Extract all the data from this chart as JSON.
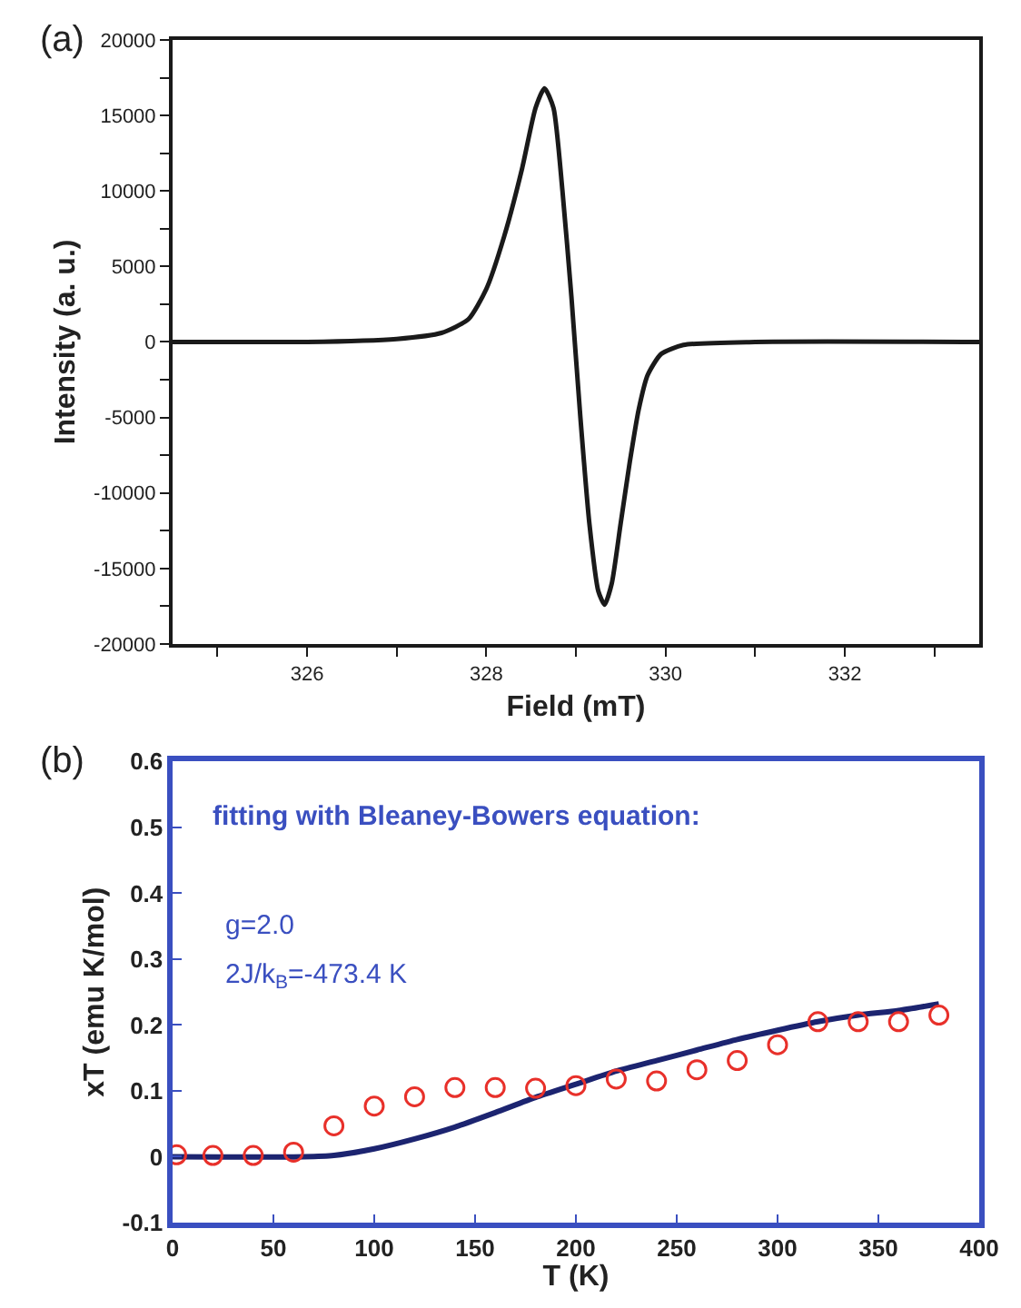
{
  "chart_data": [
    {
      "type": "line",
      "title": "(a)",
      "xlabel": "Field (mT)",
      "ylabel": "Intensity (a. u.)",
      "xlim": [
        324.5,
        333.5
      ],
      "ylim": [
        -20000,
        20000
      ],
      "xticks": [
        {
          "value": 325,
          "label": null
        },
        326,
        {
          "value": 327,
          "label": null
        },
        328,
        {
          "value": 329,
          "label": null
        },
        330,
        {
          "value": 331,
          "label": null
        },
        332,
        {
          "value": 333,
          "label": null
        }
      ],
      "yticks": [
        -20000,
        {
          "value": -17500,
          "label": null
        },
        -15000,
        {
          "value": -12500,
          "label": null
        },
        -10000,
        {
          "value": -7500,
          "label": null
        },
        -5000,
        {
          "value": -2500,
          "label": null
        },
        0,
        {
          "value": 2500,
          "label": null
        },
        5000,
        {
          "value": 7500,
          "label": null
        },
        10000,
        {
          "value": 12500,
          "label": null
        },
        15000,
        {
          "value": 17500,
          "label": null
        },
        20000
      ],
      "line_style": "solid",
      "marker": "none",
      "series": [
        {
          "color": "#1a1a1a",
          "x": [
            324.5,
            325,
            326,
            327,
            327.5,
            327.8,
            328.0,
            328.2,
            328.4,
            328.55,
            328.65,
            328.75,
            328.85,
            328.95,
            329.05,
            329.15,
            329.25,
            329.32,
            329.4,
            329.5,
            329.6,
            329.7,
            329.8,
            329.95,
            330.2,
            331,
            333.5
          ],
          "values": [
            0,
            0,
            0,
            200,
            600,
            1500,
            3500,
            7000,
            11500,
            15500,
            16800,
            15500,
            10000,
            3000,
            -5000,
            -12000,
            -16500,
            -17400,
            -16000,
            -12000,
            -8000,
            -4500,
            -2200,
            -800,
            -200,
            0,
            0
          ]
        }
      ]
    },
    {
      "type": "scatter",
      "title": "(b)",
      "xlabel": "T (K)",
      "ylabel": "xT (emu K/mol)",
      "xlim": [
        0,
        400
      ],
      "ylim": [
        -0.1,
        0.6
      ],
      "xticks": [
        0,
        50,
        100,
        150,
        200,
        250,
        300,
        350,
        400
      ],
      "yticks": [
        -0.1,
        0,
        0.1,
        0.2,
        0.3,
        0.4,
        0.5,
        0.6
      ],
      "annotations": [
        "fitting with Bleaney-Bowers equation:",
        "g=2.0",
        "2J/k$_{B}$=-473.4 K"
      ],
      "series": [
        {
          "type": "line",
          "color": "#1c2470",
          "marker": "none",
          "line_style": "solid",
          "x": [
            0,
            65,
            80,
            100,
            120,
            140,
            160,
            180,
            200,
            220,
            240,
            260,
            280,
            300,
            320,
            340,
            360,
            380
          ],
          "values": [
            0,
            0,
            0.002,
            0.012,
            0.027,
            0.045,
            0.067,
            0.09,
            0.11,
            0.13,
            0.146,
            0.162,
            0.178,
            0.192,
            0.205,
            0.215,
            0.222,
            0.232
          ]
        },
        {
          "type": "scatter",
          "color": "#e8302a",
          "marker": "circle",
          "x": [
            2,
            20,
            40,
            60,
            80,
            100,
            120,
            140,
            160,
            180,
            200,
            220,
            240,
            260,
            280,
            300,
            320,
            340,
            360,
            380
          ],
          "values": [
            0.003,
            0.002,
            0.002,
            0.007,
            0.047,
            0.077,
            0.091,
            0.105,
            0.105,
            0.104,
            0.108,
            0.118,
            0.115,
            0.132,
            0.146,
            0.17,
            0.205,
            0.205,
            0.205,
            0.215
          ]
        }
      ]
    }
  ]
}
